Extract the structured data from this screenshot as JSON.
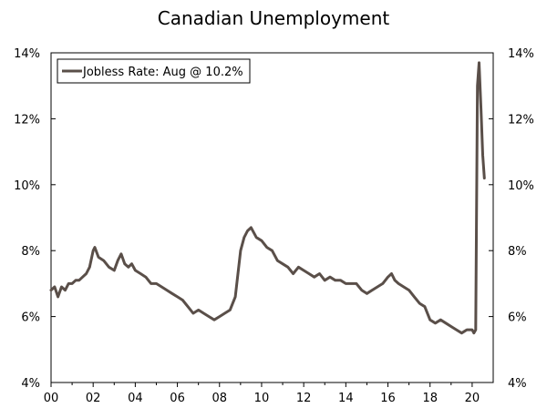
{
  "chart_data": {
    "type": "line",
    "title": "Canadian Unemployment",
    "xlabel": "",
    "ylabel": "",
    "xlim": [
      2000.0,
      2021.0
    ],
    "ylim": [
      4,
      14
    ],
    "y_ticks": [
      4,
      6,
      8,
      10,
      12,
      14
    ],
    "y_tick_labels": [
      "4%",
      "6%",
      "8%",
      "10%",
      "12%",
      "14%"
    ],
    "x_ticks": [
      2000,
      2002,
      2004,
      2006,
      2008,
      2010,
      2012,
      2014,
      2016,
      2018,
      2020
    ],
    "x_tick_labels": [
      "00",
      "02",
      "04",
      "06",
      "08",
      "10",
      "12",
      "14",
      "16",
      "18",
      "20"
    ],
    "right_axis_labels": true,
    "grid": false,
    "legend": "top-left",
    "series": [
      {
        "name": "Jobless Rate: Aug @ 10.2%",
        "color": "#5a4f49",
        "x": [
          2000.0,
          2000.17,
          2000.33,
          2000.5,
          2000.67,
          2000.83,
          2001.0,
          2001.17,
          2001.33,
          2001.5,
          2001.67,
          2001.83,
          2002.0,
          2002.08,
          2002.25,
          2002.5,
          2002.75,
          2003.0,
          2003.17,
          2003.33,
          2003.5,
          2003.67,
          2003.83,
          2004.0,
          2004.25,
          2004.5,
          2004.75,
          2005.0,
          2005.25,
          2005.5,
          2005.75,
          2006.0,
          2006.25,
          2006.5,
          2006.75,
          2007.0,
          2007.25,
          2007.5,
          2007.75,
          2008.0,
          2008.25,
          2008.5,
          2008.75,
          2009.0,
          2009.17,
          2009.33,
          2009.5,
          2009.75,
          2010.0,
          2010.25,
          2010.5,
          2010.75,
          2011.0,
          2011.25,
          2011.5,
          2011.75,
          2012.0,
          2012.25,
          2012.5,
          2012.75,
          2013.0,
          2013.25,
          2013.5,
          2013.75,
          2014.0,
          2014.25,
          2014.5,
          2014.75,
          2015.0,
          2015.25,
          2015.5,
          2015.75,
          2016.0,
          2016.17,
          2016.33,
          2016.5,
          2016.75,
          2017.0,
          2017.25,
          2017.5,
          2017.75,
          2018.0,
          2018.25,
          2018.5,
          2018.75,
          2019.0,
          2019.25,
          2019.5,
          2019.75,
          2020.0,
          2020.08,
          2020.17,
          2020.25,
          2020.33,
          2020.42,
          2020.5,
          2020.58
        ],
        "values": [
          6.8,
          6.9,
          6.6,
          6.9,
          6.8,
          7.0,
          7.0,
          7.1,
          7.1,
          7.2,
          7.3,
          7.5,
          8.0,
          8.1,
          7.8,
          7.7,
          7.5,
          7.4,
          7.7,
          7.9,
          7.6,
          7.5,
          7.6,
          7.4,
          7.3,
          7.2,
          7.0,
          7.0,
          6.9,
          6.8,
          6.7,
          6.6,
          6.5,
          6.3,
          6.1,
          6.2,
          6.1,
          6.0,
          5.9,
          6.0,
          6.1,
          6.2,
          6.6,
          8.0,
          8.4,
          8.6,
          8.7,
          8.4,
          8.3,
          8.1,
          8.0,
          7.7,
          7.6,
          7.5,
          7.3,
          7.5,
          7.4,
          7.3,
          7.2,
          7.3,
          7.1,
          7.2,
          7.1,
          7.1,
          7.0,
          7.0,
          7.0,
          6.8,
          6.7,
          6.8,
          6.9,
          7.0,
          7.2,
          7.3,
          7.1,
          7.0,
          6.9,
          6.8,
          6.6,
          6.4,
          6.3,
          5.9,
          5.8,
          5.9,
          5.8,
          5.7,
          5.6,
          5.5,
          5.6,
          5.6,
          5.5,
          5.6,
          13.0,
          13.7,
          12.3,
          10.9,
          10.2
        ]
      }
    ]
  }
}
